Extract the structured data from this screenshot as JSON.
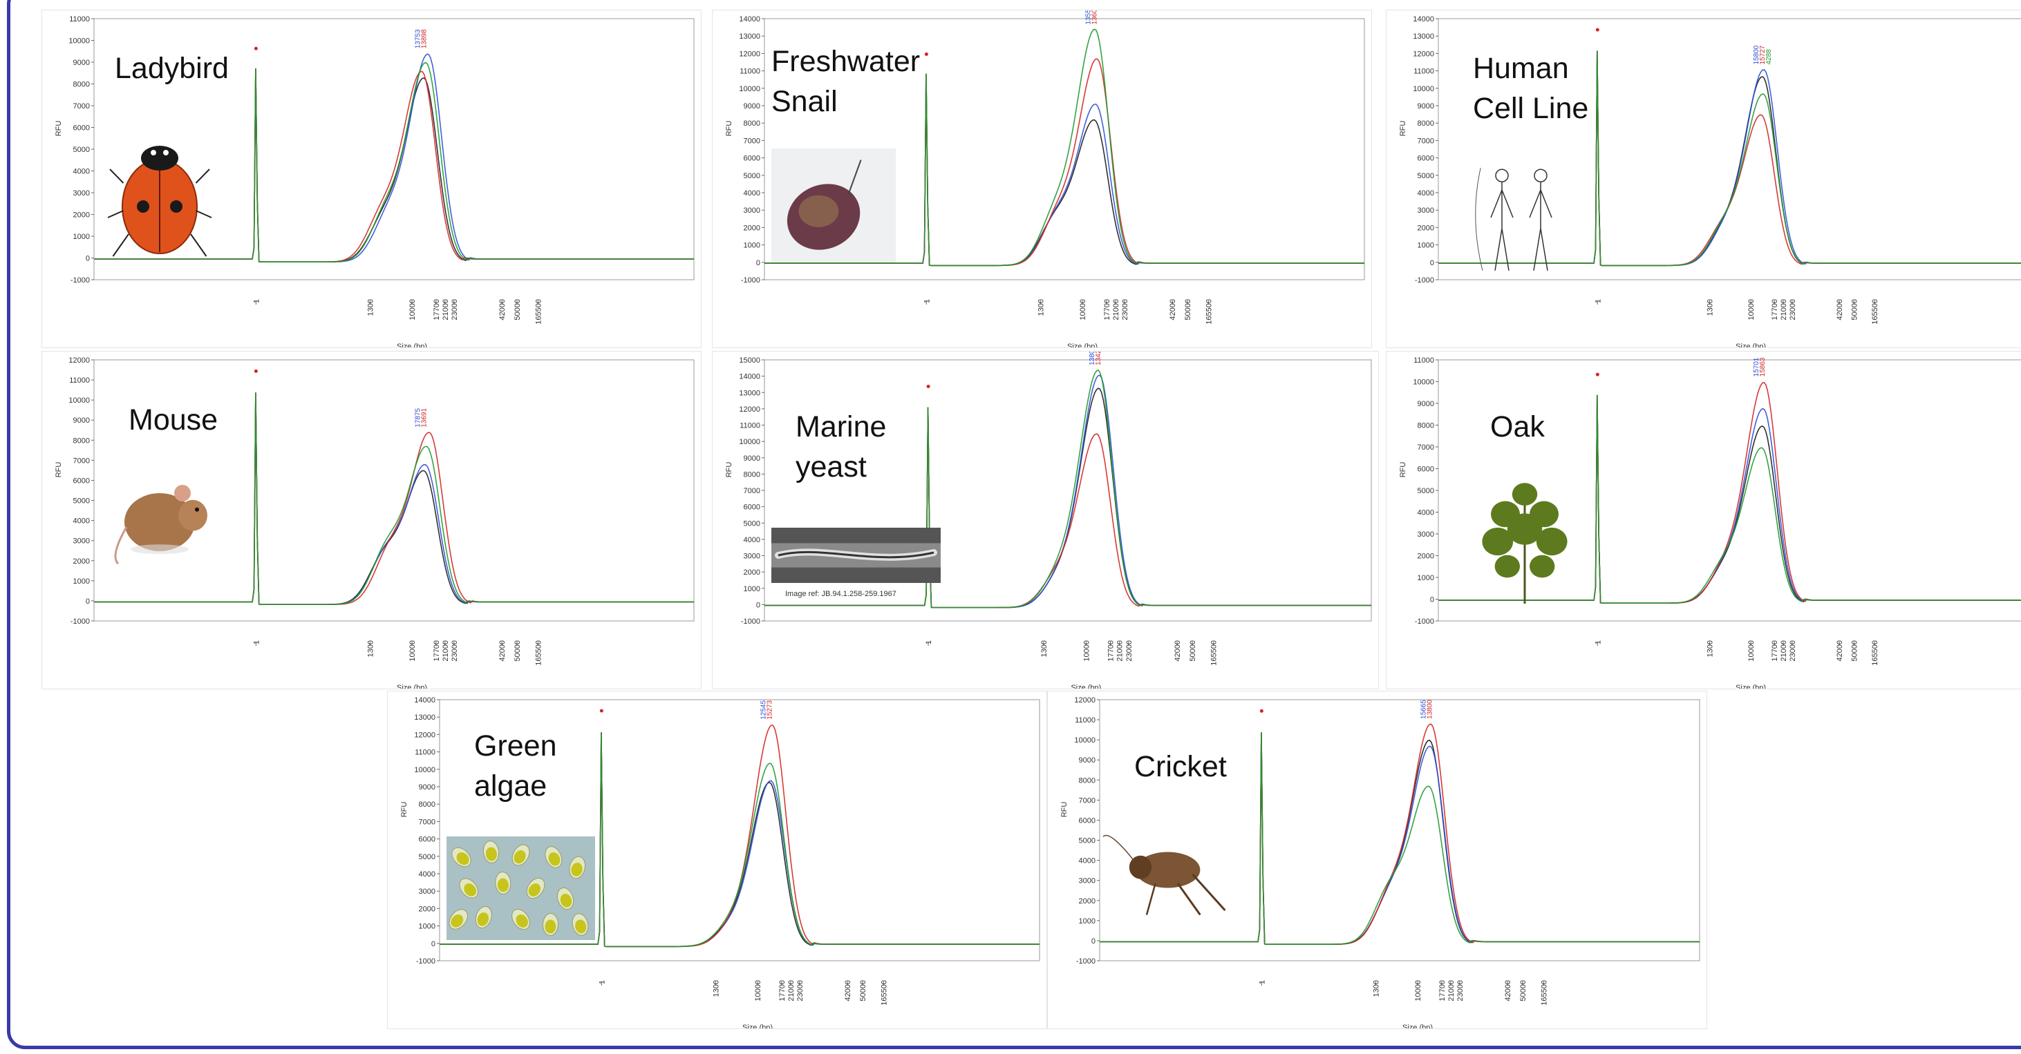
{
  "colors": {
    "black": "#1a1a1a",
    "blue": "#2c4fd6",
    "red": "#d42424",
    "green": "#1e9a2e",
    "grey": "#777777",
    "frame": "#3a3aa8"
  },
  "chart_data": [
    {
      "id": "ladybird",
      "type": "line",
      "title": "Ladybird",
      "icon": "ladybird-icon",
      "ylabel": "RFU",
      "xlabel": "Size (bp)",
      "ylim": [
        -1000,
        11000
      ],
      "yticks": [
        "11000",
        "10000",
        "9000",
        "8000",
        "7000",
        "6000",
        "5000",
        "4000",
        "3000",
        "2000",
        "1000",
        "0",
        "-1000"
      ],
      "xticks": [
        "1",
        "1300",
        "10000",
        "17700",
        "21000",
        "23000",
        "42000",
        "50000",
        "165500"
      ],
      "peak_labels": [
        "13753",
        "13898"
      ],
      "series": [
        {
          "color": "black",
          "peak": 8400,
          "shift": 0
        },
        {
          "color": "blue",
          "peak": 9500,
          "shift": 6
        },
        {
          "color": "red",
          "peak": 8700,
          "shift": -3
        },
        {
          "color": "green",
          "peak": 9100,
          "shift": 3
        }
      ],
      "marker_peak": 9500,
      "shoulder": 1800
    },
    {
      "id": "snail",
      "type": "line",
      "title": "Freshwater\nSnail",
      "icon": "snail-icon",
      "ylabel": "RFU",
      "xlabel": "Size (bp)",
      "ylim": [
        -1000,
        14000
      ],
      "yticks": [
        "14000",
        "13000",
        "12000",
        "11000",
        "10000",
        "9000",
        "8000",
        "7000",
        "6000",
        "5000",
        "4000",
        "3000",
        "2000",
        "1000",
        "0",
        "-1000"
      ],
      "xticks": [
        "1",
        "1300",
        "10000",
        "17700",
        "21000",
        "23000",
        "42000",
        "50000",
        "165500"
      ],
      "peak_labels": [
        "13553",
        "13600"
      ],
      "series": [
        {
          "color": "black",
          "peak": 8300,
          "shift": 0
        },
        {
          "color": "blue",
          "peak": 9200,
          "shift": 2
        },
        {
          "color": "red",
          "peak": 11800,
          "shift": 4
        },
        {
          "color": "green",
          "peak": 13500,
          "shift": 1
        }
      ],
      "marker_peak": 11800,
      "shoulder": 2300
    },
    {
      "id": "human",
      "type": "line",
      "title": "Human\nCell Line",
      "icon": "human-icon",
      "ylabel": "RFU",
      "xlabel": "Size (bp)",
      "ylim": [
        -1000,
        14000
      ],
      "yticks": [
        "14000",
        "13000",
        "12000",
        "11000",
        "10000",
        "9000",
        "8000",
        "7000",
        "6000",
        "5000",
        "4000",
        "3000",
        "2000",
        "1000",
        "0",
        "-1000"
      ],
      "xticks": [
        "1",
        "1300",
        "10000",
        "17700",
        "21000",
        "23000",
        "42000",
        "50000",
        "165500"
      ],
      "peak_labels": [
        "15800",
        "15727",
        "4288"
      ],
      "series": [
        {
          "color": "black",
          "peak": 10800,
          "shift": 0
        },
        {
          "color": "blue",
          "peak": 11200,
          "shift": 2
        },
        {
          "color": "red",
          "peak": 8600,
          "shift": -2
        },
        {
          "color": "green",
          "peak": 9800,
          "shift": 1
        }
      ],
      "marker_peak": 13200,
      "shoulder": 1700
    },
    {
      "id": "mouse",
      "type": "line",
      "title": "Mouse",
      "icon": "mouse-icon",
      "ylabel": "RFU",
      "xlabel": "Size (bp)",
      "ylim": [
        -1000,
        12000
      ],
      "yticks": [
        "12000",
        "11000",
        "10000",
        "9000",
        "8000",
        "7000",
        "6000",
        "5000",
        "4000",
        "3000",
        "2000",
        "1000",
        "0",
        "-1000"
      ],
      "xticks": [
        "1",
        "1300",
        "10000",
        "17700",
        "21000",
        "23000",
        "42000",
        "50000",
        "165500"
      ],
      "peak_labels": [
        "17875",
        "13691"
      ],
      "series": [
        {
          "color": "black",
          "peak": 6600,
          "shift": 0
        },
        {
          "color": "blue",
          "peak": 6900,
          "shift": 2
        },
        {
          "color": "red",
          "peak": 8500,
          "shift": 8
        },
        {
          "color": "green",
          "peak": 7800,
          "shift": 4
        }
      ],
      "marker_peak": 11300,
      "shoulder": 2200
    },
    {
      "id": "yeast",
      "type": "line",
      "title": "Marine\nyeast",
      "icon": "yeast-cell-icon",
      "caption": "Image ref: JB.94.1.258-259.1967",
      "ylabel": "RFU",
      "xlabel": "Size (bp)",
      "ylim": [
        -1000,
        15000
      ],
      "yticks": [
        "15000",
        "14000",
        "13000",
        "12000",
        "11000",
        "10000",
        "9000",
        "8000",
        "7000",
        "6000",
        "5000",
        "4000",
        "3000",
        "2000",
        "1000",
        "0",
        "-1000"
      ],
      "xticks": [
        "1",
        "1300",
        "10000",
        "17700",
        "21000",
        "23000",
        "42000",
        "50000",
        "165500"
      ],
      "peak_labels": [
        "13800",
        "13421"
      ],
      "series": [
        {
          "color": "black",
          "peak": 13400,
          "shift": 1
        },
        {
          "color": "blue",
          "peak": 14200,
          "shift": 2
        },
        {
          "color": "red",
          "peak": 10600,
          "shift": -2
        },
        {
          "color": "green",
          "peak": 14500,
          "shift": 0
        }
      ],
      "marker_peak": 13200,
      "shoulder": 1500
    },
    {
      "id": "oak",
      "type": "line",
      "title": "Oak",
      "icon": "oak-leaf-icon",
      "ylabel": "RFU",
      "xlabel": "Size (bp)",
      "ylim": [
        -1000,
        11000
      ],
      "yticks": [
        "11000",
        "10000",
        "9000",
        "8000",
        "7000",
        "6000",
        "5000",
        "4000",
        "3000",
        "2000",
        "1000",
        "0",
        "-1000"
      ],
      "xticks": [
        "1",
        "1300",
        "10000",
        "17700",
        "21000",
        "23000",
        "42000",
        "50000",
        "165500"
      ],
      "peak_labels": [
        "15701",
        "15863"
      ],
      "series": [
        {
          "color": "black",
          "peak": 8100,
          "shift": 0
        },
        {
          "color": "blue",
          "peak": 8900,
          "shift": 1
        },
        {
          "color": "red",
          "peak": 10100,
          "shift": 2
        },
        {
          "color": "green",
          "peak": 7100,
          "shift": -1
        }
      ],
      "marker_peak": 10200,
      "shoulder": 1300
    },
    {
      "id": "algae",
      "type": "line",
      "title": "Green\nalgae",
      "icon": "algae-cells-icon",
      "ylabel": "RFU",
      "xlabel": "Size (bp)",
      "ylim": [
        -1000,
        14000
      ],
      "yticks": [
        "14000",
        "13000",
        "12000",
        "11000",
        "10000",
        "9000",
        "8000",
        "7000",
        "6000",
        "5000",
        "4000",
        "3000",
        "2000",
        "1000",
        "0",
        "-1000"
      ],
      "xticks": [
        "1",
        "1300",
        "10000",
        "17700",
        "21000",
        "23000",
        "42000",
        "50000",
        "165500"
      ],
      "peak_labels": [
        "12545",
        "15273"
      ],
      "series": [
        {
          "color": "black",
          "peak": 9400,
          "shift": 0
        },
        {
          "color": "blue",
          "peak": 9500,
          "shift": 2
        },
        {
          "color": "red",
          "peak": 12700,
          "shift": 4
        },
        {
          "color": "green",
          "peak": 10500,
          "shift": 1
        }
      ],
      "marker_peak": 13200,
      "shoulder": 900
    },
    {
      "id": "cricket",
      "type": "line",
      "title": "Cricket",
      "icon": "cricket-icon",
      "ylabel": "RFU",
      "xlabel": "Size (bp)",
      "ylim": [
        -1000,
        12000
      ],
      "yticks": [
        "12000",
        "11000",
        "10000",
        "9000",
        "8000",
        "7000",
        "6000",
        "5000",
        "4000",
        "3000",
        "2000",
        "1000",
        "0",
        "-1000"
      ],
      "xticks": [
        "1",
        "1300",
        "10000",
        "17700",
        "21000",
        "23000",
        "42000",
        "50000",
        "165500"
      ],
      "peak_labels": [
        "15665",
        "13800"
      ],
      "series": [
        {
          "color": "black",
          "peak": 10100,
          "shift": 0
        },
        {
          "color": "blue",
          "peak": 9800,
          "shift": 1
        },
        {
          "color": "red",
          "peak": 10900,
          "shift": 2
        },
        {
          "color": "green",
          "peak": 7800,
          "shift": -1
        }
      ],
      "marker_peak": 11300,
      "shoulder": 2100
    }
  ]
}
